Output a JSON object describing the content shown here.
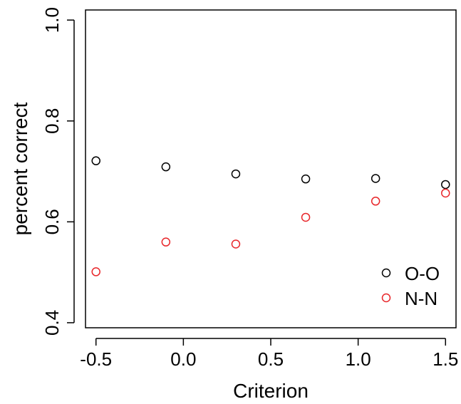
{
  "chart_data": {
    "type": "scatter",
    "title": "",
    "xlabel": "Criterion",
    "ylabel": "percent correct",
    "xlim": [
      -0.56,
      1.56
    ],
    "ylim": [
      0.39,
      1.02
    ],
    "xticks": [
      -0.5,
      0.0,
      0.5,
      1.0,
      1.5
    ],
    "xtick_labels": [
      "-0.5",
      "0.0",
      "0.5",
      "1.0",
      "1.5"
    ],
    "yticks": [
      0.4,
      0.6,
      0.8,
      1.0
    ],
    "ytick_labels": [
      "0.4",
      "0.6",
      "0.8",
      "1.0"
    ],
    "grid": false,
    "legend_position": "bottom-right",
    "marker": "open-circle",
    "series": [
      {
        "name": "O-O",
        "color": "#000000",
        "x": [
          -0.5,
          -0.1,
          0.3,
          0.7,
          1.1,
          1.5
        ],
        "y": [
          0.721,
          0.709,
          0.695,
          0.685,
          0.686,
          0.674
        ]
      },
      {
        "name": "N-N",
        "color": "#e8262a",
        "x": [
          -0.5,
          -0.1,
          0.3,
          0.7,
          1.1,
          1.5
        ],
        "y": [
          0.501,
          0.56,
          0.556,
          0.609,
          0.641,
          0.657
        ]
      }
    ]
  }
}
